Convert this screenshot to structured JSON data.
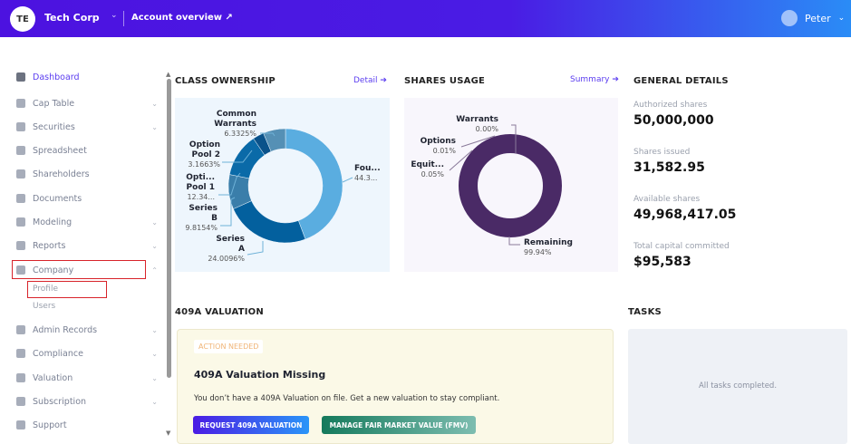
{
  "header": {
    "avatar_initials": "TE",
    "org_name": "Tech Corp",
    "account_overview": "Account overview",
    "user_name": "Peter"
  },
  "sidebar": {
    "items": [
      {
        "label": "Dashboard",
        "icon": "dashboard-icon",
        "active": true,
        "chevron": false
      },
      {
        "label": "Cap Table",
        "icon": "pie-chart-icon",
        "chevron": true
      },
      {
        "label": "Securities",
        "icon": "clipboard-icon",
        "chevron": true
      },
      {
        "label": "Spreadsheet",
        "icon": "spreadsheet-icon",
        "chevron": false
      },
      {
        "label": "Shareholders",
        "icon": "person-icon",
        "chevron": false
      },
      {
        "label": "Documents",
        "icon": "folder-icon",
        "chevron": false
      },
      {
        "label": "Modeling",
        "icon": "lightbulb-icon",
        "chevron": true
      },
      {
        "label": "Reports",
        "icon": "report-icon",
        "chevron": true
      },
      {
        "label": "Company",
        "icon": "building-icon",
        "chevron": true,
        "expanded": true
      },
      {
        "label": "Admin Records",
        "icon": "records-icon",
        "chevron": true
      },
      {
        "label": "Compliance",
        "icon": "shield-icon",
        "chevron": true
      },
      {
        "label": "Valuation",
        "icon": "chart-icon",
        "chevron": true
      },
      {
        "label": "Subscription",
        "icon": "dollar-icon",
        "chevron": true
      },
      {
        "label": "Support",
        "icon": "support-icon",
        "chevron": false
      }
    ],
    "company_sub": [
      "Profile",
      "Users"
    ]
  },
  "class_ownership": {
    "title": "CLASS OWNERSHIP",
    "link": "Detail"
  },
  "shares_usage": {
    "title": "SHARES USAGE",
    "link": "Summary"
  },
  "general": {
    "title": "GENERAL DETAILS",
    "items": [
      {
        "label": "Authorized shares",
        "value": "50,000,000"
      },
      {
        "label": "Shares issued",
        "value": "31,582.95"
      },
      {
        "label": "Available shares",
        "value": "49,968,417.05"
      },
      {
        "label": "Total capital committed",
        "value": "$95,583"
      }
    ]
  },
  "valuation": {
    "title": "409A VALUATION",
    "badge": "ACTION NEEDED",
    "card_title": "409A Valuation Missing",
    "text": "You don’t have a 409A Valuation on file. Get a new valuation to stay compliant.",
    "btn_request": "REQUEST 409A VALUATION",
    "btn_fmv": "MANAGE FAIR MARKET VALUE (FMV)"
  },
  "tasks": {
    "title": "TASKS",
    "empty": "All tasks completed."
  },
  "colors": {
    "accent": "#5b3df0",
    "header_start": "#4c12e0",
    "header_end": "#2a8cf6",
    "shares_donut": "#4a2a66"
  },
  "chart_data": [
    {
      "type": "pie",
      "title": "CLASS OWNERSHIP",
      "donut": true,
      "slices": [
        {
          "name": "Fou...",
          "label": "44.3...",
          "value": 44.34,
          "color": "#5aade0"
        },
        {
          "name": "Series A",
          "label": "24.0096%",
          "value": 24.0096,
          "color": "#03609e"
        },
        {
          "name": "Series B",
          "label": "9.8154%",
          "value": 9.8154,
          "color": "#3a7eaa"
        },
        {
          "name": "Opti... Pool 1",
          "label": "12.34...",
          "value": 12.34,
          "color": "#0a6aa8"
        },
        {
          "name": "Option Pool 2",
          "label": "3.1663%",
          "value": 3.1663,
          "color": "#0a528a"
        },
        {
          "name": "Common Warrants",
          "label": "6.3325%",
          "value": 6.3325,
          "color": "#5590b5"
        }
      ]
    },
    {
      "type": "pie",
      "title": "SHARES USAGE",
      "donut": true,
      "slices": [
        {
          "name": "Warrants",
          "label": "0.00%",
          "value": 0.0
        },
        {
          "name": "Options",
          "label": "0.01%",
          "value": 0.01
        },
        {
          "name": "Equit...",
          "label": "0.05%",
          "value": 0.05
        },
        {
          "name": "Remaining",
          "label": "99.94%",
          "value": 99.94
        }
      ]
    }
  ]
}
